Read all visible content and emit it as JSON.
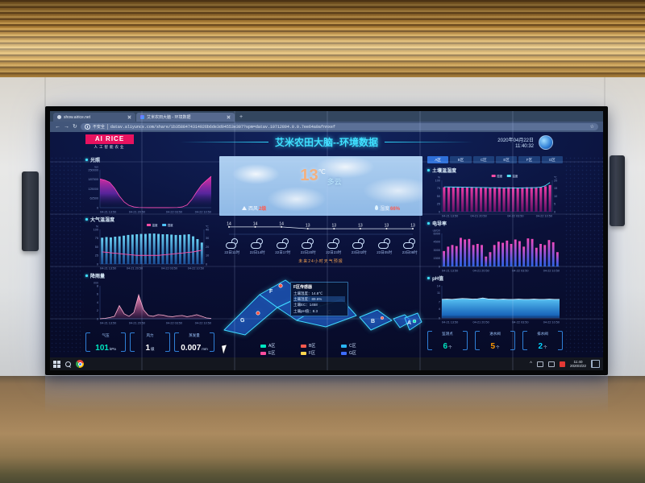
{
  "browser": {
    "tab1": "show.airice.net",
    "tab2": "艾米农田大脑 - 环境数据",
    "new_tab_label": "+",
    "security_label": "不安全",
    "url": "datav.aliyuncs.com/share/1b3588474314926b6de3d94553e307?spm=datav.10712894.0.0.7ee64a9afnnxef",
    "icons": {
      "back": "←",
      "forward": "→",
      "reload": "↻",
      "star": "☆"
    }
  },
  "header": {
    "logo_title": "AI RICE",
    "logo_subtitle": "人工智能农业",
    "title": "艾米农田大脑--环境数据",
    "date": "2020年04月22日",
    "time": "11:40:32"
  },
  "weather": {
    "temp": "13",
    "temp_unit": "℃",
    "condition": "多云",
    "wind_label": "西风",
    "wind_value": "2级",
    "humidity_label": "湿度",
    "humidity_value": "66%",
    "forecast_caption": "未来24小时天气预报",
    "forecast_times": [
      "22日11时",
      "22日14时",
      "22日17时",
      "22日20时",
      "22日23时",
      "23日02时",
      "23日05时",
      "23日08时"
    ]
  },
  "map": {
    "tooltip": {
      "title": "F区传感器",
      "rows": [
        "土壤温度：14.8℃",
        "土壤湿度：89.6%",
        "土壤EC：1458",
        "土壤pH值：8.3"
      ]
    },
    "zone_labels": [
      "G",
      "F",
      "C",
      "B",
      "A"
    ],
    "legend": [
      {
        "label": "A区",
        "color": "#00e5c0"
      },
      {
        "label": "B区",
        "color": "#ff5a4e"
      },
      {
        "label": "C区",
        "color": "#29b6f6"
      },
      {
        "label": "E区",
        "color": "#ff4d9e"
      },
      {
        "label": "F区",
        "color": "#ffd54f"
      },
      {
        "label": "G区",
        "color": "#3d6dff"
      }
    ]
  },
  "zone_tabs": [
    "A区",
    "B区",
    "C区",
    "E区",
    "F区",
    "G区"
  ],
  "stats_left": [
    {
      "label": "气压",
      "value": "101",
      "unit": "kPa",
      "color": "#00e5c0"
    },
    {
      "label": "风力",
      "value": "1",
      "unit": "级",
      "color": "#ffffff"
    },
    {
      "label": "蒸发量",
      "value": "0.007",
      "unit": "mm",
      "color": "#ffffff"
    }
  ],
  "stats_right": [
    {
      "label": "监测点",
      "value": "6",
      "unit": "个",
      "color": "#00e5c0"
    },
    {
      "label": "进水阀",
      "value": "5",
      "unit": "个",
      "color": "#ff9800"
    },
    {
      "label": "排水阀",
      "value": "2",
      "unit": "个",
      "color": "#00d4ff"
    }
  ],
  "taskbar": {
    "time": "11:40",
    "date": "2020/4/22",
    "tray_expand": "^"
  },
  "chart_data": [
    {
      "type": "area",
      "title": "光照",
      "unit": "lux",
      "ylim": [
        0,
        250000
      ],
      "yticks": [
        0,
        62500,
        125000,
        187500,
        250000
      ],
      "x_labels": [
        "04-21 13:50",
        "04-21 20:50",
        "04-22 03:50",
        "04-22 10:50"
      ],
      "values": [
        190000,
        182000,
        168000,
        130000,
        78000,
        38000,
        15000,
        5000,
        1500,
        600,
        400,
        350,
        350,
        350,
        400,
        600,
        1500,
        5000,
        18000,
        55000,
        105000,
        150000,
        180000,
        208000
      ],
      "stroke": "#ff4db8",
      "fill_stops": [
        [
          "0",
          "#ff2fa8",
          "0.9"
        ],
        [
          "0.55",
          "#8a2fd6",
          "0.6"
        ],
        [
          "1",
          "#141a50",
          "0"
        ]
      ]
    },
    {
      "type": "barline",
      "title": "大气温湿度",
      "unit": "%",
      "ylim": [
        0,
        100
      ],
      "yticks": [
        0,
        25,
        50,
        75,
        100
      ],
      "x_labels": [
        "04-21 13:50",
        "04-21 20:50",
        "04-22 03:50",
        "04-22 10:50"
      ],
      "values": [
        76,
        78,
        77,
        79,
        80,
        82,
        84,
        85,
        86,
        87,
        87,
        88,
        88,
        87,
        86,
        86,
        85,
        84,
        84,
        85,
        86,
        80,
        72,
        62
      ],
      "bar_stops": [
        [
          "0",
          "#6fdcff",
          "0.95"
        ],
        [
          "1",
          "#1f5fae",
          "0.8"
        ]
      ],
      "legend": [
        {
          "label": "温度",
          "color": "#ff4da6"
        },
        {
          "label": "湿度",
          "color": "#4fc3ff"
        }
      ],
      "line": {
        "values": [
          14,
          13.5,
          13,
          12.5,
          12,
          11.5,
          11,
          10.5,
          10,
          10,
          10,
          10,
          10,
          10,
          10.5,
          11,
          11.5,
          12,
          12.5,
          13,
          13.5,
          14,
          15,
          16
        ],
        "ylim": [
          0,
          40
        ],
        "yticks": [
          0,
          10,
          20,
          30,
          40
        ],
        "unit": "℃",
        "color": "#ff4da6"
      }
    },
    {
      "type": "area",
      "title": "降雨量",
      "unit": "mm",
      "ylim": [
        0,
        8
      ],
      "yticks": [
        0,
        2,
        4,
        6,
        8
      ],
      "x_labels": [
        "04-21 13:50",
        "04-21 20:50",
        "04-22 03:50",
        "04-22 10:50"
      ],
      "values": [
        0,
        0.1,
        0.3,
        0.6,
        3.2,
        1.2,
        0.6,
        1.5,
        5.8,
        2.2,
        0.8,
        0.6,
        1.0,
        0.9,
        0.6,
        0.5,
        0.7,
        0.8,
        0.5,
        0.7,
        1.0,
        0.6,
        0.2,
        0.1
      ],
      "stroke": "#ffb0d0",
      "fill_stops": [
        [
          "0",
          "#ff9fc8",
          "0.95"
        ],
        [
          "1",
          "#ff5fa8",
          "0.1"
        ]
      ]
    },
    {
      "type": "line",
      "ylim": [
        10,
        17
      ],
      "values": [
        14,
        14,
        14,
        13,
        13,
        13,
        13,
        13
      ],
      "stroke": "#dfe8f5",
      "point_labels": true
    },
    {
      "type": "barline",
      "title": "土壤温湿度",
      "unit": "%",
      "ylim": [
        0,
        100
      ],
      "yticks": [
        0,
        25,
        50,
        75,
        100
      ],
      "x_labels": [
        "04-21 13:50",
        "04-21 20:50",
        "04-22 03:50",
        "04-22 10:50"
      ],
      "values": [
        78,
        79,
        78,
        79,
        78,
        78,
        79,
        78,
        78,
        78,
        77,
        78,
        78,
        77,
        78,
        78,
        77,
        77,
        78,
        78,
        78,
        79,
        81,
        85
      ],
      "bar_stops": [
        [
          "0",
          "#ff3fae",
          "0.95"
        ],
        [
          "1",
          "#7a1270",
          "0.8"
        ]
      ],
      "legend": [
        {
          "label": "湿度",
          "color": "#ff4da6"
        },
        {
          "label": "温度",
          "color": "#4fe3ff"
        }
      ],
      "line": {
        "values": [
          15.8,
          15.8,
          15.7,
          15.7,
          15.6,
          15.6,
          15.5,
          15.5,
          15.4,
          15.4,
          15.3,
          15.3,
          15.2,
          15.2,
          15.2,
          15.1,
          15.1,
          15.2,
          15.2,
          15.3,
          15.4,
          15.6,
          16.6,
          18.6
        ],
        "ylim": [
          0,
          20
        ],
        "yticks": [
          0,
          5,
          10,
          15,
          20
        ],
        "unit": "℃",
        "color": "#4fe3ff"
      }
    },
    {
      "type": "bar",
      "title": "电导率",
      "unit": "us/cm",
      "ylim": [
        0,
        6000
      ],
      "yticks": [
        0,
        1500,
        3000,
        4500,
        6000
      ],
      "x_labels": [
        "04-21 13:50",
        "04-21 20:50",
        "04-22 03:50",
        "04-22 10:50"
      ],
      "values": [
        2800,
        3600,
        3900,
        3700,
        5200,
        4900,
        5000,
        3900,
        4100,
        3900,
        1800,
        2600,
        3900,
        4500,
        4300,
        4700,
        4100,
        4900,
        4600,
        3600,
        5100,
        5000,
        3400,
        4100,
        3900,
        4800,
        4400,
        2600
      ],
      "bar_stops": [
        [
          "0",
          "#ff4dc4",
          "0.95"
        ],
        [
          "0.6",
          "#7b5ff0",
          "0.9"
        ],
        [
          "1",
          "#2f6fff",
          "0.85"
        ]
      ]
    },
    {
      "type": "area",
      "title": "pH值",
      "ylim": [
        0,
        14
      ],
      "yticks": [
        0,
        4,
        7,
        11,
        14
      ],
      "x_labels": [
        "04-21 13:50",
        "04-21 20:50",
        "04-22 03:50",
        "04-22 10:50"
      ],
      "values": [
        8.1,
        8.2,
        8.1,
        8.3,
        8.5,
        8.4,
        8.2,
        8.3,
        8.7,
        8.3,
        8.2,
        8.1,
        8.2,
        8.1,
        8.1,
        8.2,
        8.1,
        8.1,
        8.2,
        8.1,
        8.1,
        8.2,
        8.1,
        8.1
      ],
      "stroke": "#d8f3ff",
      "fill_stops": [
        [
          "0",
          "#5fd0ff",
          "0.95"
        ],
        [
          "0.85",
          "#1f7fe0",
          "0.8"
        ],
        [
          "1",
          "#1565c0",
          "0.5"
        ]
      ]
    }
  ]
}
